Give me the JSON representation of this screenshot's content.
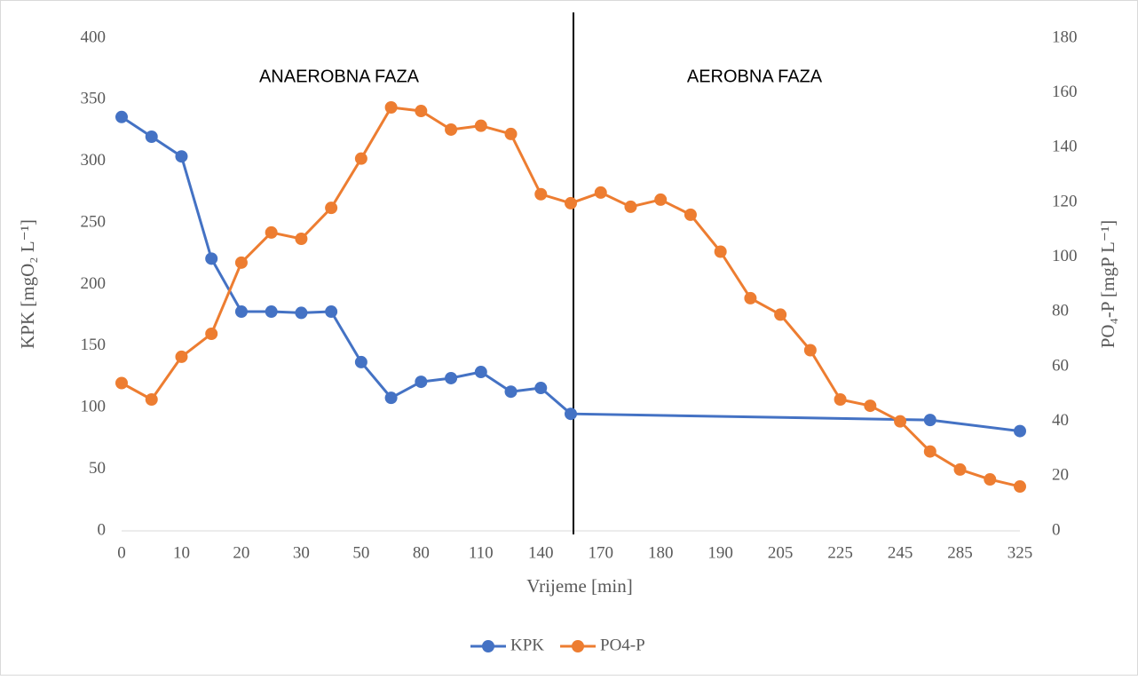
{
  "chart_data": {
    "type": "line",
    "x_label": "Vrijeme [min]",
    "y_label": "KPK [mgO₂ L⁻¹]",
    "y2_label": "PO₄-P [mgP L⁻¹]",
    "annotations": [
      "ANAEROBNA FAZA",
      "AEROBNA FAZA"
    ],
    "categories": [
      "0",
      null,
      "10",
      null,
      "20",
      null,
      "30",
      null,
      "50",
      null,
      "80",
      null,
      "110",
      null,
      "140",
      null,
      "170",
      null,
      "180",
      null,
      "190",
      null,
      "205",
      null,
      "225",
      null,
      "245",
      null,
      "285",
      null,
      "325"
    ],
    "series": [
      {
        "name": "KPK",
        "color": "#4472c4",
        "axis": "y",
        "values": [
          336,
          320,
          304,
          221,
          178,
          178,
          177,
          178,
          137,
          108,
          121,
          124,
          129,
          113,
          116,
          95,
          null,
          null,
          null,
          null,
          null,
          null,
          null,
          null,
          null,
          null,
          null,
          90,
          null,
          null,
          81
        ]
      },
      {
        "name": "PO4-P",
        "color": "#ed7d31",
        "axis": "y2",
        "values": [
          54,
          48,
          63.6,
          72,
          98,
          109,
          106.7,
          118,
          136,
          154.7,
          153.4,
          146.6,
          148,
          145,
          123,
          119.7,
          123.6,
          118.4,
          121,
          115.5,
          102,
          85,
          79,
          66,
          48,
          45.7,
          40,
          29,
          22.4,
          18.8,
          16.2
        ]
      }
    ],
    "span_gaps": true,
    "ylim": [
      0,
      400
    ],
    "yticks": [
      0,
      50,
      100,
      150,
      200,
      250,
      300,
      350,
      400
    ],
    "y2lim": [
      0,
      180
    ],
    "y2ticks": [
      0,
      20,
      40,
      60,
      80,
      100,
      120,
      140,
      160,
      180
    ],
    "legend": "bottom"
  }
}
